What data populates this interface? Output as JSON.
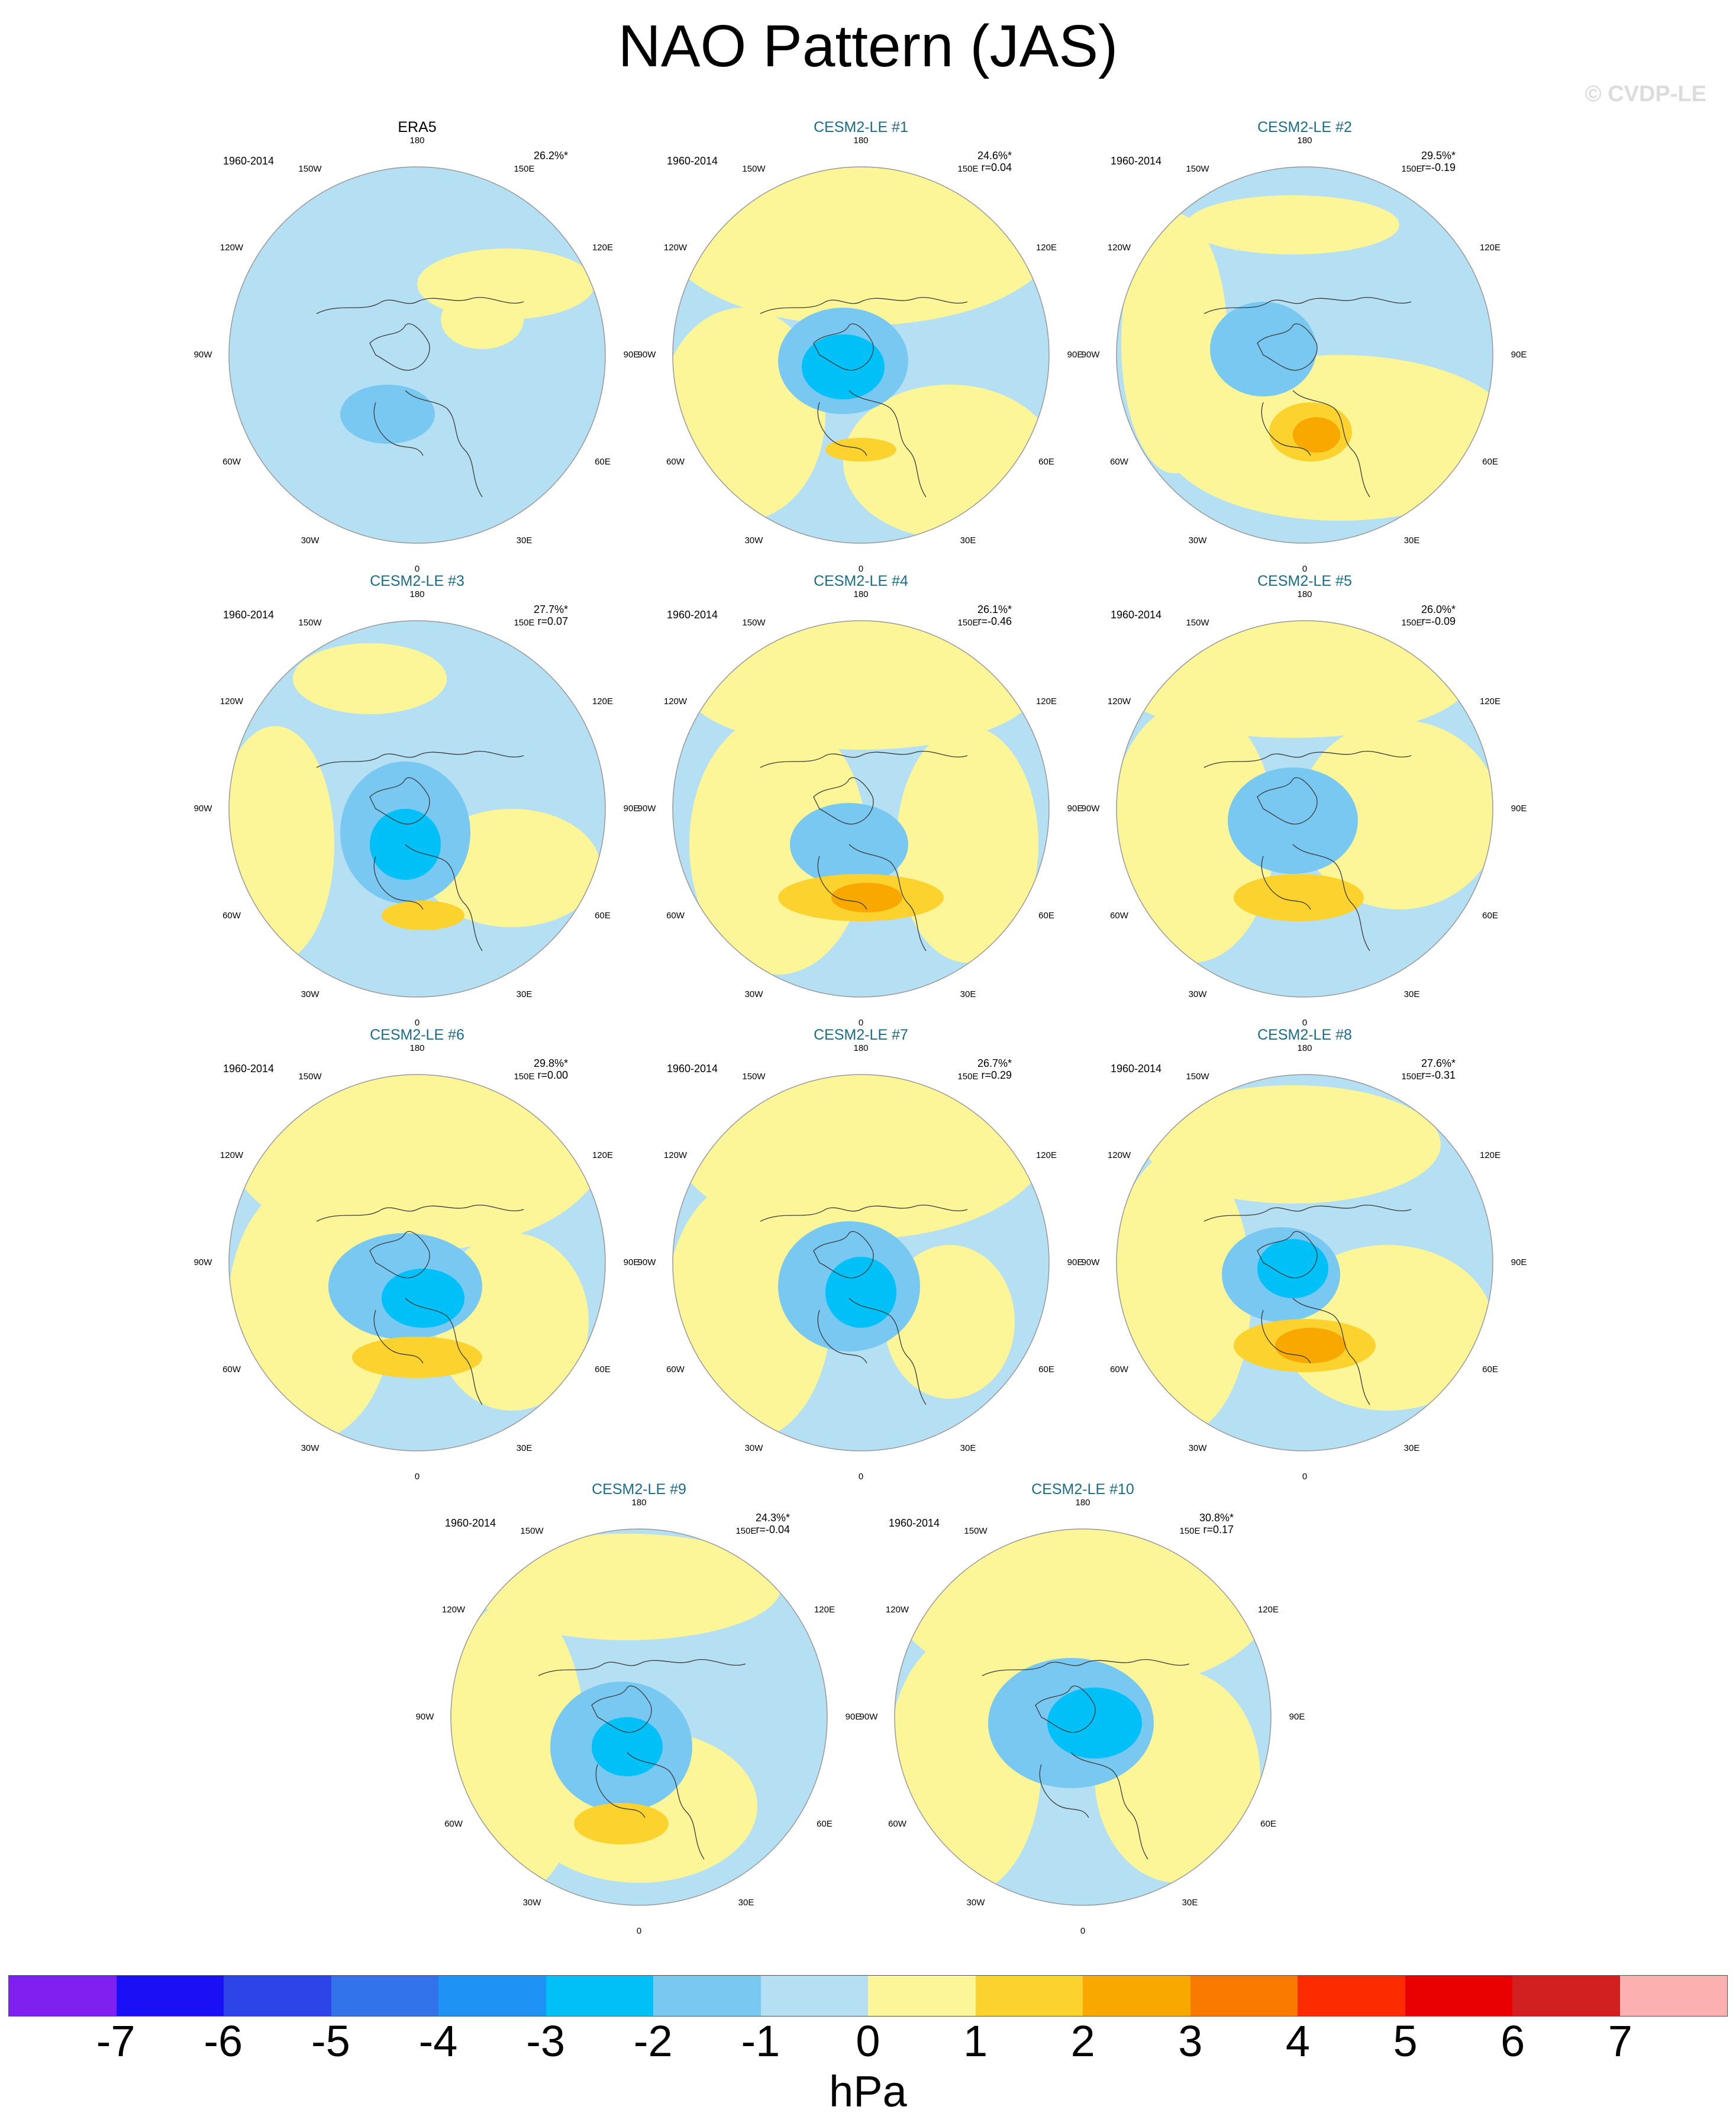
{
  "title": "NAO Pattern (JAS)",
  "watermark": "© CVDP-LE",
  "period": "1960-2014",
  "lon_labels": [
    "180",
    "150E",
    "120E",
    "90E",
    "60E",
    "30E",
    "0",
    "30W",
    "60W",
    "90W",
    "120W",
    "150W"
  ],
  "colors": {
    "map_background": "#b5dff2",
    "outline": "#999999",
    "coast": "#3a3a3a",
    "title_obs": "#000000",
    "title_model": "#1a6c8a",
    "watermark": "#dcdcdc"
  },
  "panels": [
    {
      "title": "ERA5",
      "stats": "26.2%*",
      "r": "",
      "type": "obs"
    },
    {
      "title": "CESM2-LE #1",
      "stats": "24.6%*",
      "r": "r=0.04",
      "type": "model"
    },
    {
      "title": "CESM2-LE #2",
      "stats": "29.5%*",
      "r": "r=-0.19",
      "type": "model"
    },
    {
      "title": "CESM2-LE #3",
      "stats": "27.7%*",
      "r": "r=0.07",
      "type": "model"
    },
    {
      "title": "CESM2-LE #4",
      "stats": "26.1%*",
      "r": "r=-0.46",
      "type": "model"
    },
    {
      "title": "CESM2-LE #5",
      "stats": "26.0%*",
      "r": "r=-0.09",
      "type": "model"
    },
    {
      "title": "CESM2-LE #6",
      "stats": "29.8%*",
      "r": "r=0.00",
      "type": "model"
    },
    {
      "title": "CESM2-LE #7",
      "stats": "26.7%*",
      "r": "r=0.29",
      "type": "model"
    },
    {
      "title": "CESM2-LE #8",
      "stats": "27.6%*",
      "r": "r=-0.31",
      "type": "model"
    },
    {
      "title": "CESM2-LE #9",
      "stats": "24.3%*",
      "r": "r=-0.04",
      "type": "model"
    },
    {
      "title": "CESM2-LE #10",
      "stats": "30.8%*",
      "r": "r=0.17",
      "type": "model"
    }
  ],
  "colorbar": {
    "unit": "hPa",
    "ticks": [
      "-7",
      "-6",
      "-5",
      "-4",
      "-3",
      "-2",
      "-1",
      "0",
      "1",
      "2",
      "3",
      "4",
      "5",
      "6",
      "7"
    ],
    "colors": [
      "#8020f0",
      "#1a10f5",
      "#2d45e8",
      "#3272ea",
      "#1f93f5",
      "#00c0f8",
      "#78c8f2",
      "#b5dff2",
      "#fdf698",
      "#fcd22f",
      "#f9a800",
      "#fa7a00",
      "#fc2c00",
      "#e90000",
      "#d21f1f",
      "#fdb0b0"
    ]
  }
}
